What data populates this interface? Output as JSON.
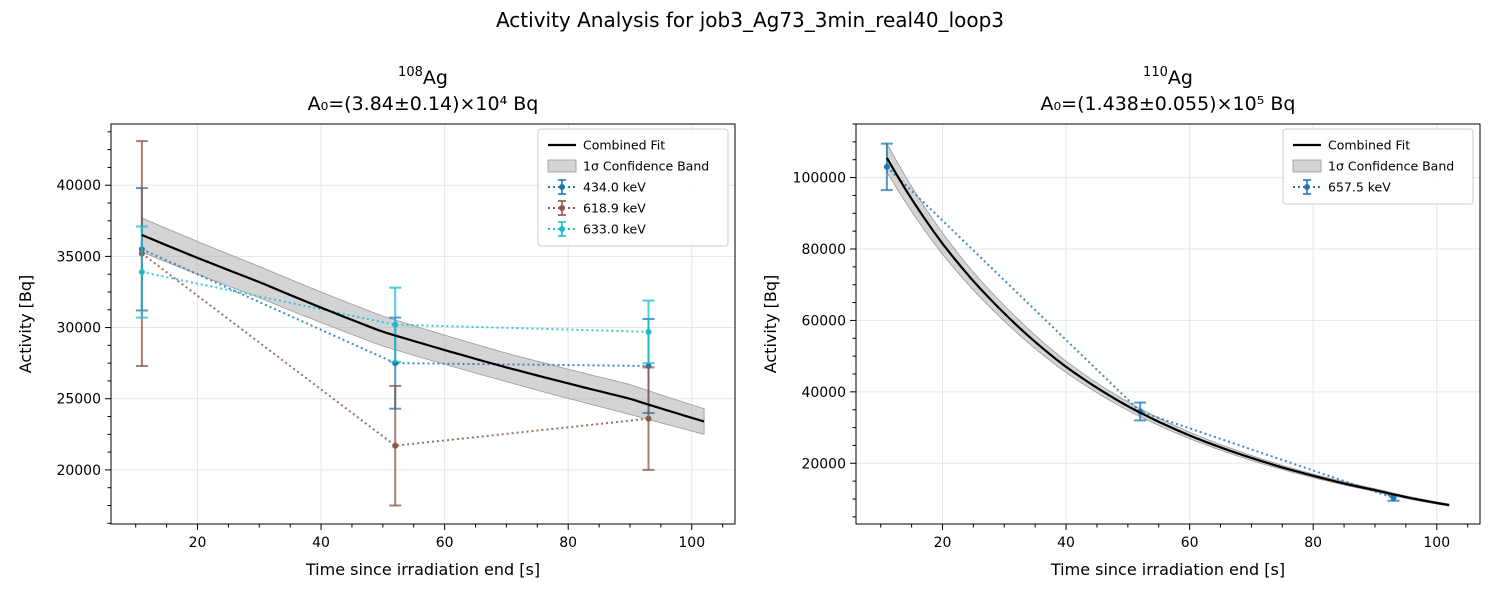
{
  "suptitle": "Activity Analysis for job3_Ag73_3min_real40_loop3",
  "chart_data": [
    {
      "type": "line",
      "isotope_mass": "108",
      "isotope_symbol": "Ag",
      "subtitle": "A₀=(3.84±0.14)×10⁴ Bq",
      "xlabel": "Time since irradiation end [s]",
      "ylabel": "Activity [Bq]",
      "xlim": [
        6,
        107
      ],
      "ylim": [
        16200,
        44300
      ],
      "xticks": [
        20,
        40,
        60,
        80,
        100
      ],
      "yticks": [
        20000,
        25000,
        30000,
        35000,
        40000
      ],
      "grid": true,
      "legend_position": "top-right",
      "fit": {
        "name": "Combined Fit",
        "color": "#000000",
        "x": [
          11,
          30,
          50,
          70,
          90,
          102
        ],
        "y": [
          36500,
          33200,
          29700,
          27200,
          25000,
          23400
        ],
        "band_lower": [
          35300,
          32100,
          28700,
          26200,
          23900,
          22500
        ],
        "band_upper": [
          37700,
          34300,
          30800,
          28200,
          26000,
          24300
        ]
      },
      "band_name": "1σ Confidence Band",
      "band_color": "#b0b0b0",
      "series": [
        {
          "name": "434.0 keV",
          "color": "#1f77b4",
          "x": [
            11,
            52,
            93
          ],
          "y": [
            35500,
            27500,
            27300
          ],
          "err": [
            4300,
            3200,
            3300
          ]
        },
        {
          "name": "618.9 keV",
          "color": "#8c564b",
          "x": [
            11,
            52,
            93
          ],
          "y": [
            35200,
            21700,
            23600
          ],
          "err": [
            7900,
            4200,
            3600
          ]
        },
        {
          "name": "633.0 keV",
          "color": "#17becf",
          "x": [
            11,
            52,
            93
          ],
          "y": [
            33900,
            30200,
            29700
          ],
          "err": [
            3200,
            2600,
            2200
          ]
        }
      ]
    },
    {
      "type": "line",
      "isotope_mass": "110",
      "isotope_symbol": "Ag",
      "subtitle": "A₀=(1.438±0.055)×10⁵ Bq",
      "xlabel": "Time since irradiation end [s]",
      "ylabel": "Activity [Bq]",
      "xlim": [
        6,
        107
      ],
      "ylim": [
        3000,
        115000
      ],
      "xticks": [
        20,
        40,
        60,
        80,
        100
      ],
      "yticks": [
        20000,
        40000,
        60000,
        80000,
        100000
      ],
      "grid": true,
      "legend_position": "top-right",
      "fit": {
        "name": "Combined Fit",
        "color": "#000000",
        "x": [
          11,
          15,
          20,
          25,
          30,
          40,
          50,
          60,
          70,
          80,
          90,
          102
        ],
        "y": [
          105500,
          94000,
          81500,
          71000,
          62000,
          47000,
          36000,
          27800,
          21500,
          16500,
          12500,
          8300
        ],
        "band_lower": [
          101500,
          90500,
          78500,
          68500,
          59800,
          45400,
          34800,
          26900,
          20800,
          16000,
          12100,
          8000
        ],
        "band_upper": [
          109500,
          97500,
          84500,
          73500,
          64200,
          48600,
          37200,
          28700,
          22200,
          17000,
          12900,
          8600
        ]
      },
      "band_name": "1σ Confidence Band",
      "band_color": "#b0b0b0",
      "series": [
        {
          "name": "657.5 keV",
          "color": "#1f77b4",
          "x": [
            11,
            52,
            93
          ],
          "y": [
            103000,
            34500,
            10300
          ],
          "err": [
            6500,
            2500,
            800
          ]
        }
      ]
    }
  ]
}
